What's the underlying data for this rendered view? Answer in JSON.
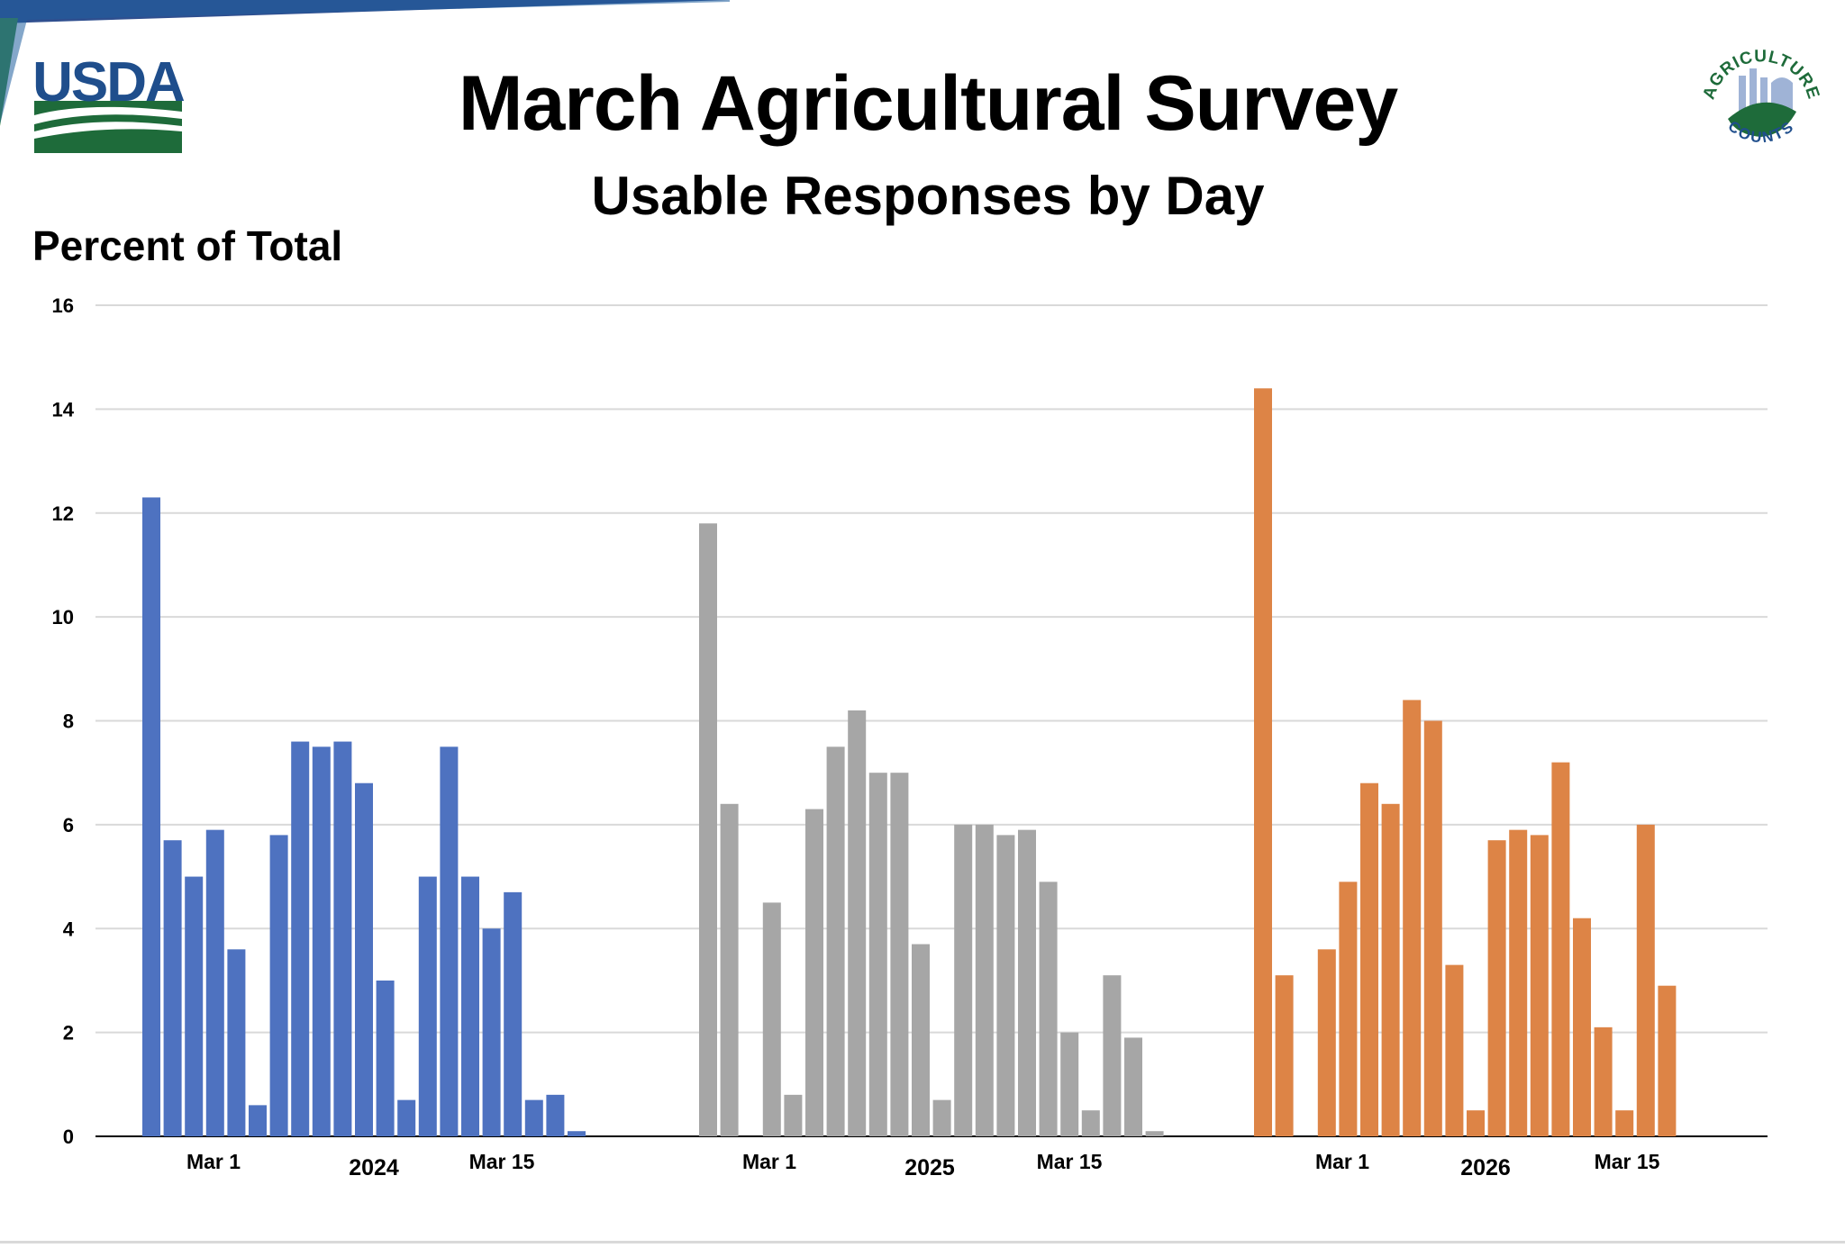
{
  "header": {
    "title": "March Agricultural Survey",
    "subtitle": "Usable Responses by Day",
    "usda_logo_text": "USDA",
    "seal_text_top": "AGRICULTURE",
    "seal_text_bottom": "COUNTS"
  },
  "colors": {
    "series_2024": "#4e72c0",
    "series_2025": "#a6a6a6",
    "series_2026": "#dd8446",
    "grid": "#d9d9d9",
    "axis": "#000000",
    "usda_blue": "#1f4e8c",
    "usda_green": "#1e6b3a"
  },
  "chart_data": {
    "type": "bar",
    "title": "March Agricultural Survey",
    "subtitle": "Usable Responses by Day",
    "ylabel": "Percent of Total",
    "xlabel": "",
    "ylim": [
      0,
      16
    ],
    "yticks": [
      "0",
      "2",
      "4",
      "6",
      "8",
      "10",
      "12",
      "14",
      "16"
    ],
    "grid": true,
    "legend": "none",
    "series": [
      {
        "name": "2024",
        "color": "#4e72c0",
        "values": [
          12.3,
          5.7,
          5.0,
          5.9,
          3.6,
          0.6,
          5.8,
          7.6,
          7.5,
          7.6,
          6.8,
          3.0,
          0.7,
          5.0,
          7.5,
          5.0,
          4.0,
          4.7,
          0.7,
          0.8,
          0.1
        ],
        "date_labels": [
          "Mar 1",
          "Mar 15"
        ]
      },
      {
        "name": "2025",
        "color": "#a6a6a6",
        "values": [
          11.8,
          6.4,
          0,
          4.5,
          0.8,
          6.3,
          7.5,
          8.2,
          7.0,
          7.0,
          3.7,
          0.7,
          6.0,
          6.0,
          5.8,
          5.9,
          4.9,
          2.0,
          0.5,
          3.1,
          1.9,
          0.1
        ],
        "date_labels": [
          "Mar 1",
          "Mar 15"
        ]
      },
      {
        "name": "2026",
        "color": "#dd8446",
        "values": [
          14.4,
          3.1,
          0,
          3.6,
          4.9,
          6.8,
          6.4,
          8.4,
          8.0,
          3.3,
          0.5,
          5.7,
          5.9,
          5.8,
          7.2,
          4.2,
          2.1,
          0.5,
          6.0,
          2.9
        ],
        "date_labels": [
          "Mar 1",
          "Mar 15"
        ]
      }
    ]
  }
}
